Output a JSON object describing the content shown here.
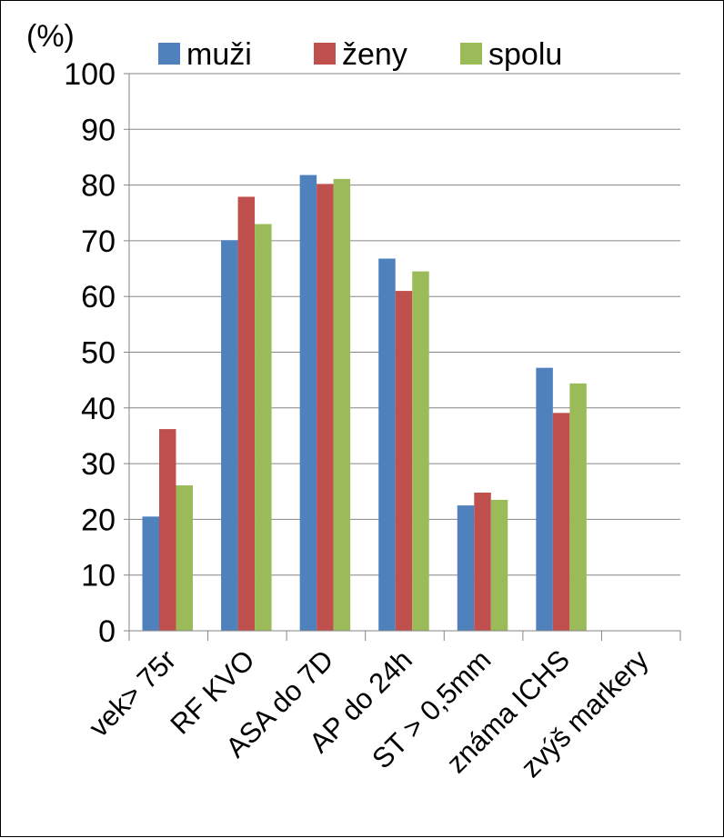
{
  "chart_data": {
    "type": "bar",
    "y_unit_label": "(%)",
    "categories": [
      "vek> 75r",
      "RF KVO",
      "ASA do 7D",
      "AP do 24h",
      "ST > 0,5mm",
      "známa ICHS",
      "zvýš markery"
    ],
    "series": [
      {
        "name": "muži",
        "color": "#4F81BD",
        "values": [
          20.5,
          70.1,
          81.8,
          66.8,
          22.5,
          47.2,
          null
        ]
      },
      {
        "name": "ženy",
        "color": "#C0504D",
        "values": [
          36.2,
          77.9,
          80.2,
          61.0,
          24.8,
          39.1,
          null
        ]
      },
      {
        "name": "spolu",
        "color": "#9BBB59",
        "values": [
          26.1,
          73.0,
          81.1,
          64.5,
          23.5,
          44.4,
          null
        ]
      }
    ],
    "ylim": [
      0,
      100
    ],
    "yticks": [
      0,
      10,
      20,
      30,
      40,
      50,
      60,
      70,
      80,
      90,
      100
    ],
    "grid": true,
    "legend_position": "top"
  }
}
